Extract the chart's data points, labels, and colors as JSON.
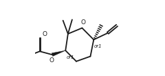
{
  "bg_color": "#ffffff",
  "line_color": "#1a1a1a",
  "line_width": 1.3,
  "text_color": "#1a1a1a",
  "font_size": 6.5,
  "fig_width": 2.4,
  "fig_height": 1.1,
  "dpi": 100,
  "O1": [
    6.2,
    8.2
  ],
  "C2": [
    4.5,
    7.5
  ],
  "C3": [
    4.2,
    5.5
  ],
  "C4": [
    5.5,
    4.2
  ],
  "C5": [
    7.2,
    4.8
  ],
  "C6": [
    7.6,
    6.8
  ],
  "xlim": [
    0.5,
    12.0
  ],
  "ylim": [
    2.5,
    11.5
  ]
}
